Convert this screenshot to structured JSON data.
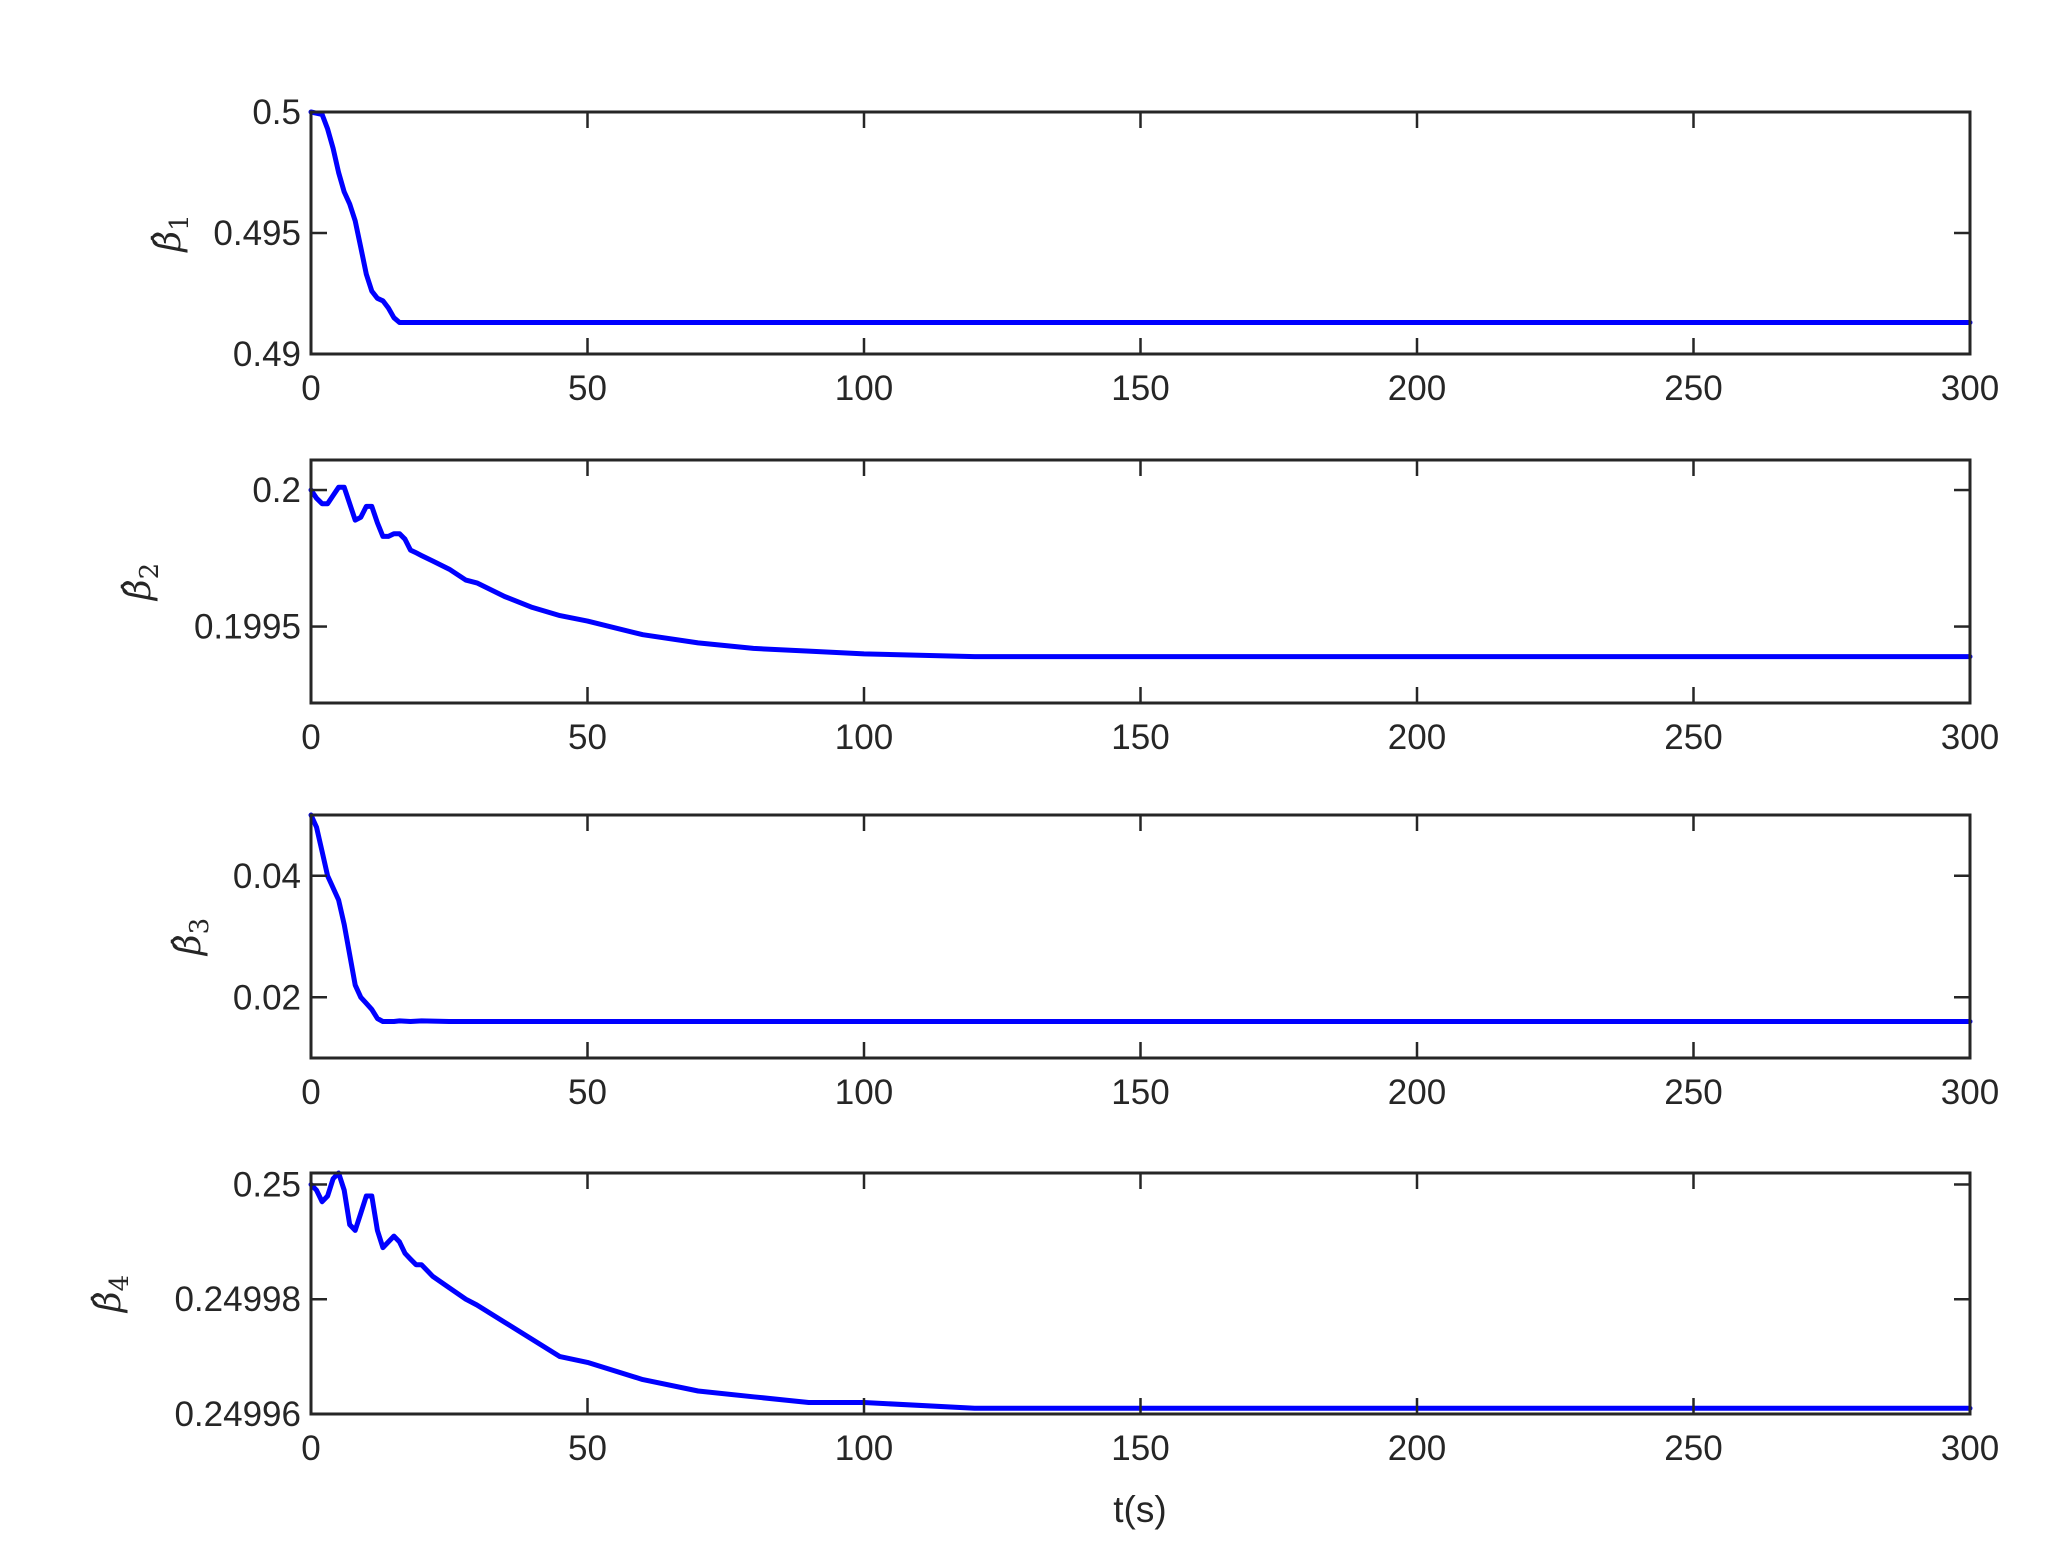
{
  "chart_data": [
    {
      "type": "line",
      "ylabel": "β̂1",
      "ylabel_symbol": "β",
      "ylabel_subscript": "1",
      "xlim": [
        0,
        300
      ],
      "ylim": [
        0.49,
        0.5
      ],
      "xticks": [
        0,
        50,
        100,
        150,
        200,
        250,
        300
      ],
      "xtick_labels": [
        "0",
        "50",
        "100",
        "150",
        "200",
        "250",
        "300"
      ],
      "yticks": [
        0.49,
        0.495,
        0.5
      ],
      "ytick_labels": [
        "0.49",
        "0.495",
        "0.5"
      ],
      "grid": false,
      "color": "#0000ff",
      "series": [
        {
          "x": [
            0,
            2,
            3,
            4,
            5,
            6,
            7,
            8,
            9,
            10,
            11,
            12,
            13,
            14,
            15,
            16,
            17,
            18,
            20,
            25,
            30,
            50,
            100,
            150,
            200,
            250,
            300
          ],
          "values": [
            0.5,
            0.4999,
            0.4993,
            0.4985,
            0.4975,
            0.4967,
            0.4962,
            0.4955,
            0.4944,
            0.4933,
            0.4926,
            0.4923,
            0.4922,
            0.4919,
            0.4915,
            0.4913,
            0.4913,
            0.4913,
            0.4913,
            0.4913,
            0.4913,
            0.4913,
            0.4913,
            0.4913,
            0.4913,
            0.4913,
            0.4913
          ]
        }
      ]
    },
    {
      "type": "line",
      "ylabel": "β̂2",
      "ylabel_symbol": "β",
      "ylabel_subscript": "2",
      "xlim": [
        0,
        300
      ],
      "ylim": [
        0.19922,
        0.20011
      ],
      "xticks": [
        0,
        50,
        100,
        150,
        200,
        250,
        300
      ],
      "xtick_labels": [
        "0",
        "50",
        "100",
        "150",
        "200",
        "250",
        "300"
      ],
      "yticks": [
        0.1995,
        0.2
      ],
      "ytick_labels": [
        "0.1995",
        "0.2"
      ],
      "grid": false,
      "color": "#0000ff",
      "series": [
        {
          "x": [
            0,
            1,
            2,
            3,
            4,
            5,
            6,
            7,
            8,
            9,
            10,
            11,
            12,
            13,
            14,
            15,
            16,
            17,
            18,
            19,
            20,
            22,
            25,
            28,
            30,
            35,
            40,
            45,
            50,
            60,
            70,
            80,
            90,
            100,
            120,
            150,
            200,
            250,
            300
          ],
          "values": [
            0.2,
            0.19997,
            0.19995,
            0.19995,
            0.19998,
            0.20001,
            0.20001,
            0.19995,
            0.19989,
            0.1999,
            0.19994,
            0.19994,
            0.19988,
            0.19983,
            0.19983,
            0.19984,
            0.19984,
            0.19982,
            0.19978,
            0.19977,
            0.19976,
            0.19974,
            0.19971,
            0.19967,
            0.19966,
            0.19961,
            0.19957,
            0.19954,
            0.19952,
            0.19947,
            0.19944,
            0.19942,
            0.19941,
            0.1994,
            0.19939,
            0.19939,
            0.19939,
            0.19939,
            0.19939
          ]
        }
      ]
    },
    {
      "type": "line",
      "ylabel": "β̂3",
      "ylabel_symbol": "β",
      "ylabel_subscript": "3",
      "xlim": [
        0,
        300
      ],
      "ylim": [
        0.01,
        0.05
      ],
      "xticks": [
        0,
        50,
        100,
        150,
        200,
        250,
        300
      ],
      "xtick_labels": [
        "0",
        "50",
        "100",
        "150",
        "200",
        "250",
        "300"
      ],
      "yticks": [
        0.02,
        0.04
      ],
      "ytick_labels": [
        "0.02",
        "0.04"
      ],
      "grid": false,
      "color": "#0000ff",
      "series": [
        {
          "x": [
            0,
            1,
            2,
            3,
            4,
            5,
            6,
            7,
            8,
            9,
            10,
            11,
            12,
            13,
            14,
            15,
            16,
            18,
            20,
            25,
            30,
            50,
            100,
            150,
            200,
            250,
            300
          ],
          "values": [
            0.05,
            0.048,
            0.044,
            0.04,
            0.038,
            0.036,
            0.032,
            0.027,
            0.022,
            0.02,
            0.019,
            0.018,
            0.0165,
            0.016,
            0.016,
            0.016,
            0.0161,
            0.016,
            0.0161,
            0.016,
            0.016,
            0.016,
            0.016,
            0.016,
            0.016,
            0.016,
            0.016
          ]
        }
      ]
    },
    {
      "type": "line",
      "ylabel": "β̂4",
      "ylabel_symbol": "β",
      "ylabel_subscript": "4",
      "xlim": [
        0,
        300
      ],
      "ylim": [
        0.24996,
        0.250002
      ],
      "xticks": [
        0,
        50,
        100,
        150,
        200,
        250,
        300
      ],
      "xtick_labels": [
        "0",
        "50",
        "100",
        "150",
        "200",
        "250",
        "300"
      ],
      "yticks": [
        0.24996,
        0.24998,
        0.25
      ],
      "ytick_labels": [
        "0.24996",
        "0.24998",
        "0.25"
      ],
      "grid": false,
      "color": "#0000ff",
      "series": [
        {
          "x": [
            0,
            1,
            2,
            3,
            4,
            5,
            6,
            7,
            8,
            9,
            10,
            11,
            12,
            13,
            14,
            15,
            16,
            17,
            18,
            19,
            20,
            22,
            25,
            28,
            30,
            35,
            40,
            45,
            50,
            60,
            70,
            80,
            90,
            100,
            120,
            150,
            200,
            250,
            300
          ],
          "values": [
            0.25,
            0.249999,
            0.249997,
            0.249998,
            0.250001,
            0.250002,
            0.249999,
            0.249993,
            0.249992,
            0.249995,
            0.249998,
            0.249998,
            0.249992,
            0.249989,
            0.24999,
            0.249991,
            0.24999,
            0.249988,
            0.249987,
            0.249986,
            0.249986,
            0.249984,
            0.249982,
            0.24998,
            0.249979,
            0.249976,
            0.249973,
            0.24997,
            0.249969,
            0.249966,
            0.249964,
            0.249963,
            0.249962,
            0.249962,
            0.249961,
            0.249961,
            0.249961,
            0.249961,
            0.249961
          ]
        }
      ]
    }
  ],
  "xlabel": "t(s)"
}
